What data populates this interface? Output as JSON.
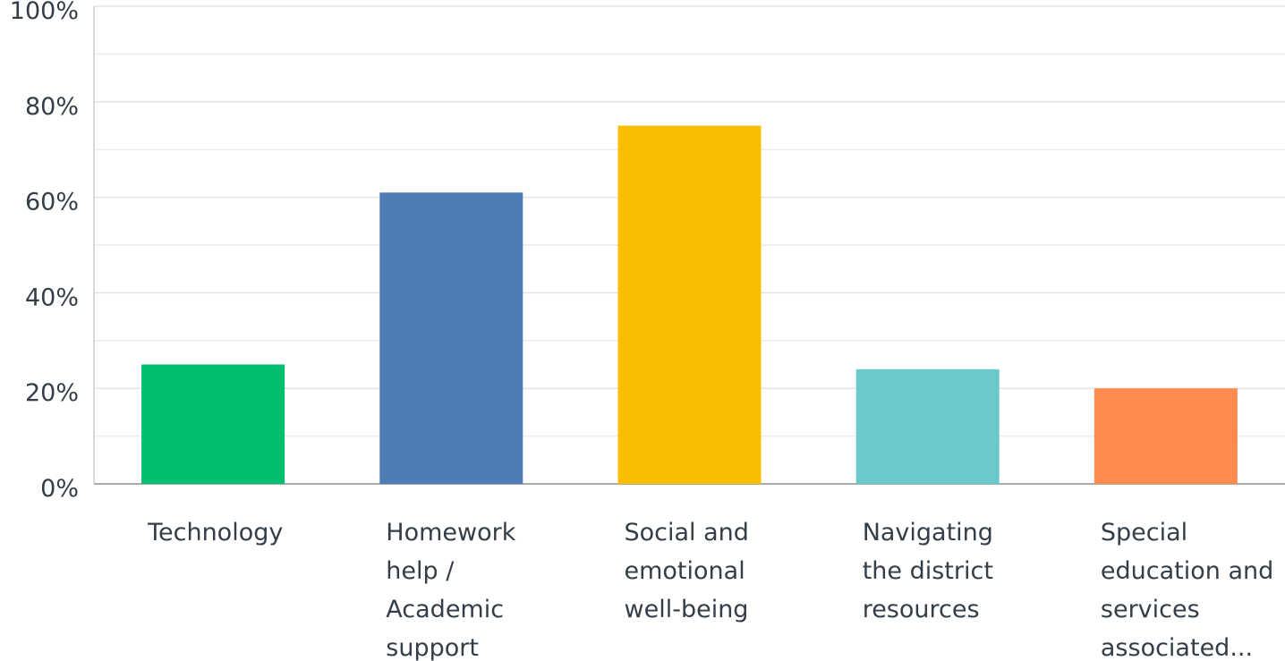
{
  "chart_data": {
    "type": "bar",
    "categories": [
      [
        "Technology"
      ],
      [
        "Homework",
        "help /",
        "Academic",
        "support"
      ],
      [
        "Social and",
        "emotional",
        "well-being"
      ],
      [
        "Navigating",
        "the district",
        "resources"
      ],
      [
        "Special",
        "education and",
        "services",
        "associated..."
      ]
    ],
    "values": [
      25,
      61,
      75,
      24,
      20
    ],
    "colors": [
      "#00bf6f",
      "#507cb6",
      "#f9be00",
      "#6bc8cd",
      "#ff8b4f"
    ],
    "ylim": [
      0,
      100
    ],
    "yticks": [
      {
        "value": 0,
        "label": "0%"
      },
      {
        "value": 20,
        "label": "20%"
      },
      {
        "value": 40,
        "label": "40%"
      },
      {
        "value": 60,
        "label": "60%"
      },
      {
        "value": 80,
        "label": "80%"
      },
      {
        "value": 100,
        "label": "100%"
      }
    ],
    "minor_yticks": [
      10,
      30,
      50,
      70,
      90
    ],
    "grid": true
  }
}
